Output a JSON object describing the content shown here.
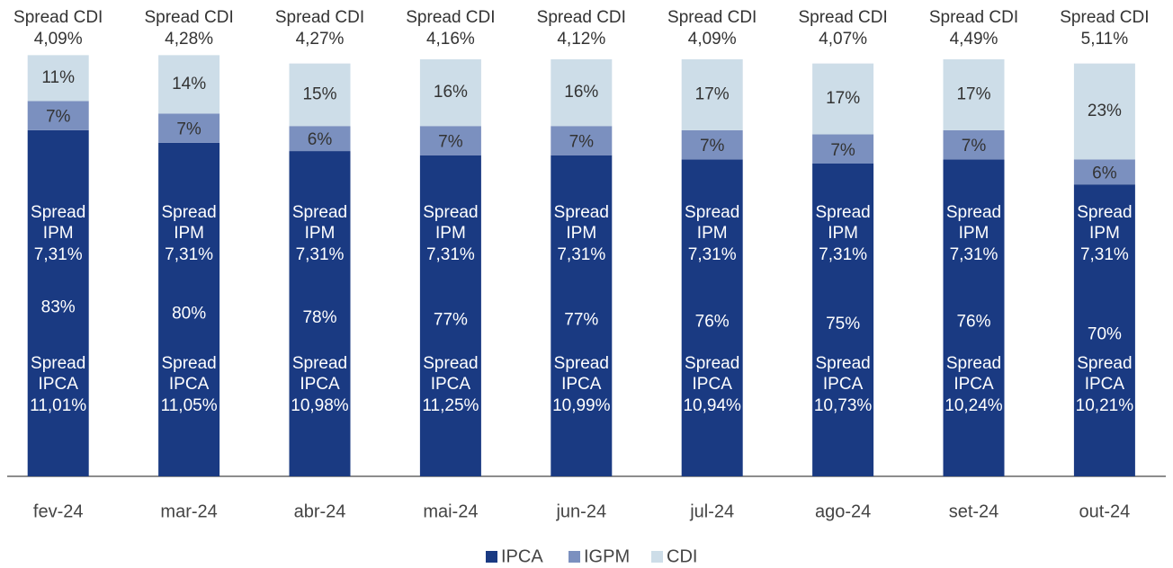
{
  "chart_data": {
    "type": "stacked_bar",
    "categories": [
      "fev-24",
      "mar-24",
      "abr-24",
      "mai-24",
      "jun-24",
      "jul-24",
      "ago-24",
      "set-24",
      "out-24"
    ],
    "series": [
      {
        "name": "IPCA",
        "color": "#1a3a82",
        "values": [
          83,
          80,
          78,
          77,
          77,
          76,
          75,
          76,
          70
        ],
        "value_labels": [
          "83%",
          "80%",
          "78%",
          "77%",
          "77%",
          "76%",
          "75%",
          "76%",
          "70%"
        ]
      },
      {
        "name": "IGPM",
        "color": "#7b90bf",
        "values": [
          7,
          7,
          6,
          7,
          7,
          7,
          7,
          7,
          6
        ],
        "value_labels": [
          "7%",
          "7%",
          "6%",
          "7%",
          "7%",
          "7%",
          "7%",
          "7%",
          "6%"
        ]
      },
      {
        "name": "CDI",
        "color": "#cddde8",
        "values": [
          11,
          14,
          15,
          16,
          16,
          17,
          17,
          17,
          23
        ],
        "value_labels": [
          "11%",
          "14%",
          "15%",
          "16%",
          "16%",
          "17%",
          "17%",
          "17%",
          "23%"
        ]
      }
    ],
    "ylim": [
      0,
      100
    ],
    "annotations": {
      "spread_cdi": {
        "label": "Spread CDI",
        "values": [
          "4,09%",
          "4,28%",
          "4,27%",
          "4,16%",
          "4,12%",
          "4,09%",
          "4,07%",
          "4,49%",
          "5,11%"
        ]
      },
      "spread_igpm": {
        "label_lines": [
          "Spread",
          "IPM"
        ],
        "values": [
          "7,31%",
          "7,31%",
          "7,31%",
          "7,31%",
          "7,31%",
          "7,31%",
          "7,31%",
          "7,31%",
          "7,31%"
        ]
      },
      "spread_ipca": {
        "label_lines": [
          "Spread",
          "IPCA"
        ],
        "values": [
          "11,01%",
          "11,05%",
          "10,98%",
          "11,25%",
          "10,99%",
          "10,94%",
          "10,73%",
          "10,24%",
          "10,21%"
        ]
      }
    }
  }
}
